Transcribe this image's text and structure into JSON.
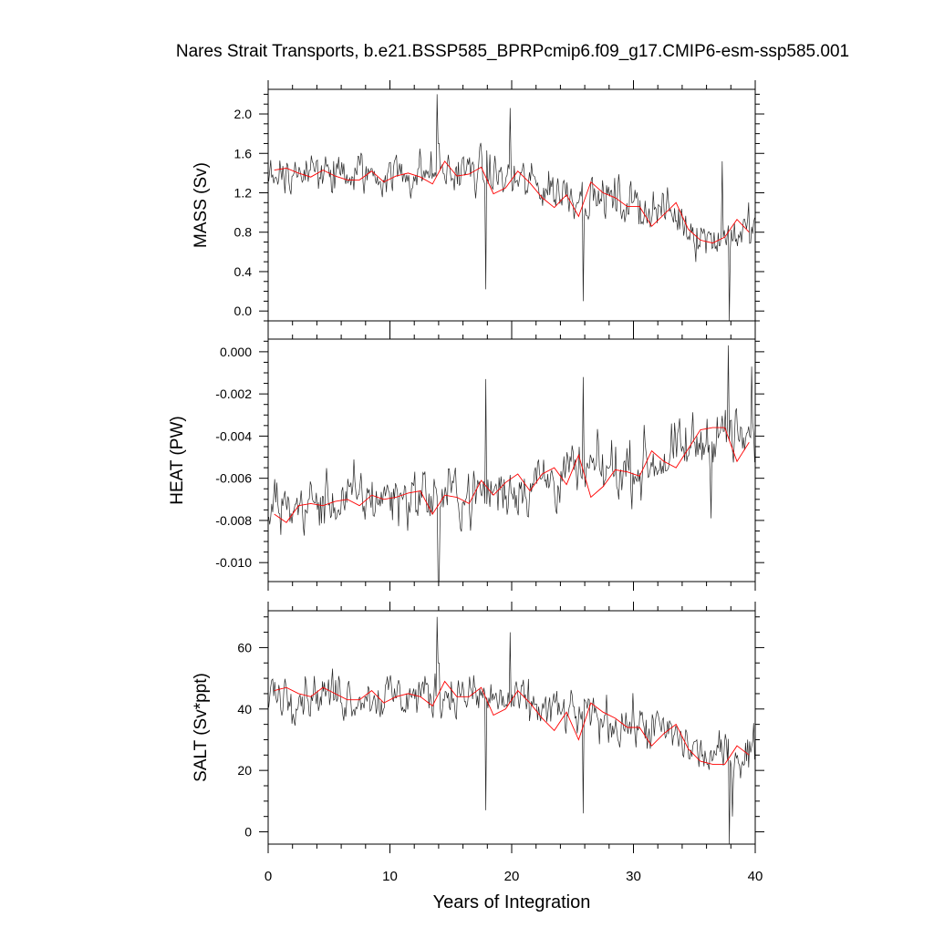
{
  "title": "Nares Strait Transports, b.e21.BSSP585_BPRPcmip6.f09_g17.CMIP6-esm-ssp585.001",
  "xlabel": "Years of Integration",
  "colors": {
    "monthly": "#000000",
    "annual": "#ff0000",
    "axis": "#000000"
  },
  "chart_data": [
    {
      "type": "line",
      "ylabel": "MASS (Sv)",
      "xlim": [
        0,
        40
      ],
      "ylim": [
        -0.1,
        2.25
      ],
      "xticks": [
        "0",
        "10",
        "20",
        "30",
        "40"
      ],
      "yticks": [
        "0.0",
        "0.4",
        "0.8",
        "1.2",
        "1.6",
        "2.0"
      ],
      "ytick_values": [
        0.0,
        0.4,
        0.8,
        1.2,
        1.6,
        2.0
      ],
      "monthly": {
        "trend": [
          [
            0,
            1.42
          ],
          [
            5,
            1.38
          ],
          [
            10,
            1.4
          ],
          [
            15,
            1.4
          ],
          [
            17,
            1.42
          ],
          [
            20,
            1.33
          ],
          [
            25,
            1.2
          ],
          [
            30,
            1.08
          ],
          [
            33,
            1.0
          ],
          [
            36,
            0.75
          ],
          [
            40,
            0.82
          ]
        ],
        "amplitude": 0.28,
        "spikes": [
          [
            13.9,
            2.2
          ],
          [
            14.0,
            1.7
          ],
          [
            17.9,
            0.22
          ],
          [
            19.9,
            2.06
          ],
          [
            25.9,
            0.1
          ],
          [
            37.9,
            -0.1
          ],
          [
            37.3,
            1.52
          ]
        ]
      },
      "annual": {
        "x": [
          0.5,
          1.5,
          2.5,
          3.5,
          4.5,
          5.5,
          6.5,
          7.5,
          8.5,
          9.5,
          10.5,
          11.5,
          12.5,
          13.5,
          14.5,
          15.5,
          16.5,
          17.5,
          18.5,
          19.5,
          20.5,
          21.5,
          22.5,
          23.5,
          24.5,
          25.5,
          26.5,
          27.5,
          28.5,
          29.5,
          30.5,
          31.5,
          32.5,
          33.5,
          34.5,
          35.5,
          36.5,
          37.5,
          38.5,
          39.5
        ],
        "y": [
          1.43,
          1.45,
          1.4,
          1.36,
          1.43,
          1.37,
          1.33,
          1.33,
          1.42,
          1.31,
          1.37,
          1.4,
          1.36,
          1.29,
          1.52,
          1.37,
          1.39,
          1.46,
          1.19,
          1.25,
          1.42,
          1.3,
          1.15,
          1.05,
          1.18,
          0.96,
          1.31,
          1.2,
          1.15,
          1.06,
          1.06,
          0.86,
          0.98,
          1.1,
          0.83,
          0.72,
          0.69,
          0.75,
          0.93,
          0.8
        ]
      }
    },
    {
      "type": "line",
      "ylabel": "HEAT (PW)",
      "xlim": [
        0,
        40
      ],
      "ylim": [
        -0.0109,
        0.0006
      ],
      "xticks": [
        "0",
        "10",
        "20",
        "30",
        "40"
      ],
      "yticks": [
        "0.000",
        "-0.002",
        "-0.004",
        "-0.006",
        "-0.008",
        "-0.010"
      ],
      "ytick_values": [
        0.0,
        -0.002,
        -0.004,
        -0.006,
        -0.008,
        -0.01
      ],
      "monthly": {
        "trend": [
          [
            0,
            -0.0075
          ],
          [
            10,
            -0.0068
          ],
          [
            17,
            -0.0068
          ],
          [
            20,
            -0.0064
          ],
          [
            25,
            -0.0058
          ],
          [
            30,
            -0.0055
          ],
          [
            34,
            -0.0048
          ],
          [
            37,
            -0.0038
          ],
          [
            40,
            -0.0045
          ]
        ],
        "amplitude": 0.0017,
        "spikes": [
          [
            17.9,
            -0.0013
          ],
          [
            25.9,
            -0.0012
          ],
          [
            37.8,
            0.0003
          ],
          [
            14.0,
            -0.0109
          ],
          [
            36.4,
            -0.0079
          ],
          [
            39.7,
            -0.0007
          ]
        ]
      },
      "annual": {
        "x": [
          0.5,
          1.5,
          2.5,
          3.5,
          4.5,
          5.5,
          6.5,
          7.5,
          8.5,
          9.5,
          10.5,
          11.5,
          12.5,
          13.5,
          14.5,
          15.5,
          16.5,
          17.5,
          18.5,
          19.5,
          20.5,
          21.5,
          22.5,
          23.5,
          24.5,
          25.5,
          26.5,
          27.5,
          28.5,
          29.5,
          30.5,
          31.5,
          32.5,
          33.5,
          34.5,
          35.5,
          36.5,
          37.5,
          38.5,
          39.5
        ],
        "y": [
          -0.0077,
          -0.0081,
          -0.0073,
          -0.0072,
          -0.0073,
          -0.0071,
          -0.007,
          -0.0073,
          -0.0068,
          -0.007,
          -0.0069,
          -0.0067,
          -0.0066,
          -0.0077,
          -0.0068,
          -0.0069,
          -0.0072,
          -0.0061,
          -0.0068,
          -0.0062,
          -0.0058,
          -0.0066,
          -0.0058,
          -0.0055,
          -0.0063,
          -0.0049,
          -0.0069,
          -0.0064,
          -0.0056,
          -0.0057,
          -0.0059,
          -0.0047,
          -0.0052,
          -0.0055,
          -0.0046,
          -0.0037,
          -0.0036,
          -0.0036,
          -0.0052,
          -0.0043
        ]
      }
    },
    {
      "type": "line",
      "ylabel": "SALT (Sv*ppt)",
      "xlim": [
        0,
        40
      ],
      "ylim": [
        -4,
        72
      ],
      "xticks": [
        "0",
        "10",
        "20",
        "30",
        "40"
      ],
      "yticks": [
        "0",
        "20",
        "40",
        "60"
      ],
      "ytick_values": [
        0,
        20,
        40,
        60
      ],
      "monthly": {
        "trend": [
          [
            0,
            46
          ],
          [
            5,
            45
          ],
          [
            10,
            44
          ],
          [
            15,
            45
          ],
          [
            17,
            44
          ],
          [
            20,
            42
          ],
          [
            25,
            38
          ],
          [
            30,
            35
          ],
          [
            33,
            32
          ],
          [
            36,
            24
          ],
          [
            40,
            26
          ]
        ],
        "amplitude": 9,
        "spikes": [
          [
            13.9,
            70
          ],
          [
            14.0,
            55
          ],
          [
            17.9,
            7
          ],
          [
            19.9,
            65
          ],
          [
            25.9,
            6
          ],
          [
            37.9,
            -4
          ],
          [
            38.1,
            5
          ]
        ]
      },
      "annual": {
        "x": [
          0.5,
          1.5,
          2.5,
          3.5,
          4.5,
          5.5,
          6.5,
          7.5,
          8.5,
          9.5,
          10.5,
          11.5,
          12.5,
          13.5,
          14.5,
          15.5,
          16.5,
          17.5,
          18.5,
          19.5,
          20.5,
          21.5,
          22.5,
          23.5,
          24.5,
          25.5,
          26.5,
          27.5,
          28.5,
          29.5,
          30.5,
          31.5,
          32.5,
          33.5,
          34.5,
          35.5,
          36.5,
          37.5,
          38.5,
          39.5
        ],
        "y": [
          46,
          47,
          45,
          44,
          47,
          45,
          43,
          43,
          46,
          42,
          44,
          45,
          44,
          41,
          49,
          44,
          44,
          47,
          38,
          40,
          46,
          42,
          37,
          33,
          39,
          30,
          42,
          39,
          37,
          34,
          34,
          28,
          32,
          35,
          27,
          23,
          22,
          22,
          28,
          25
        ]
      }
    }
  ]
}
